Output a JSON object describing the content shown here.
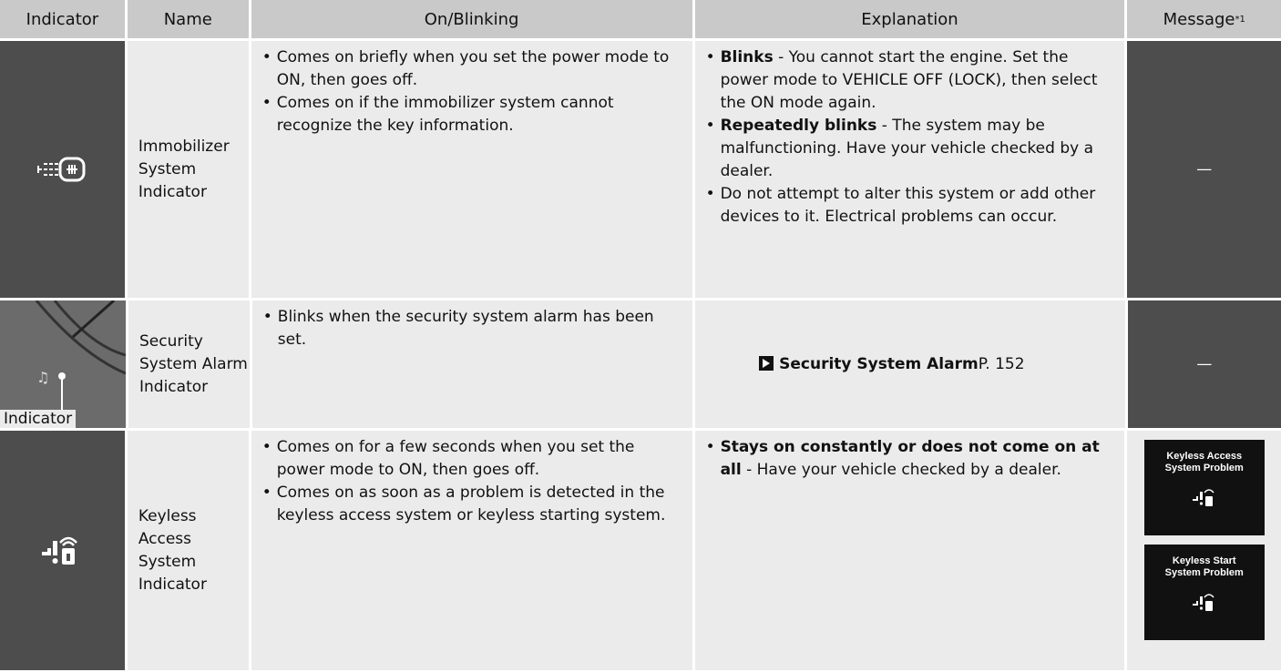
{
  "table": {
    "headers": [
      "Indicator",
      "Name",
      "On/Blinking",
      "Explanation",
      "Message"
    ],
    "header_note": "*1",
    "rows": [
      {
        "name": "Immobilizer System Indicator",
        "on_blinking": [
          "Comes on briefly when you set the power mode to ON, then goes off.",
          "Comes on if the immobilizer system cannot recognize the key information."
        ],
        "explanation": [
          {
            "bold": "Blinks",
            "text": "- You cannot start the engine. Set the power mode to VEHICLE OFF (LOCK), then select the ON mode again."
          },
          {
            "bold": "Repeatedly blinks",
            "text": "- The system may be malfunctioning. Have your vehicle checked by a dealer."
          },
          {
            "text": "Do not attempt to alter this system or add other devices to it. Electrical problems can occur."
          }
        ],
        "message": "—"
      },
      {
        "name": "Security System Alarm Indicator",
        "indicator_label": "Indicator",
        "on_blinking": [
          "Blinks when the security system alarm has been set."
        ],
        "reference": {
          "title": "Security System Alarm",
          "page": "P. 152"
        },
        "message": "—"
      },
      {
        "name": "Keyless Access System Indicator",
        "on_blinking": [
          "Comes on for a few seconds when you set the power mode to ON, then goes off.",
          "Comes on as soon as a problem is detected in the keyless access system or keyless starting system."
        ],
        "explanation": [
          {
            "bold": "Stays on constantly or does not come on at all",
            "text": "- Have your vehicle checked by a dealer."
          }
        ],
        "messages": [
          [
            "Keyless Access",
            "System Problem"
          ],
          [
            "Keyless Start",
            "System Problem"
          ]
        ]
      }
    ]
  }
}
